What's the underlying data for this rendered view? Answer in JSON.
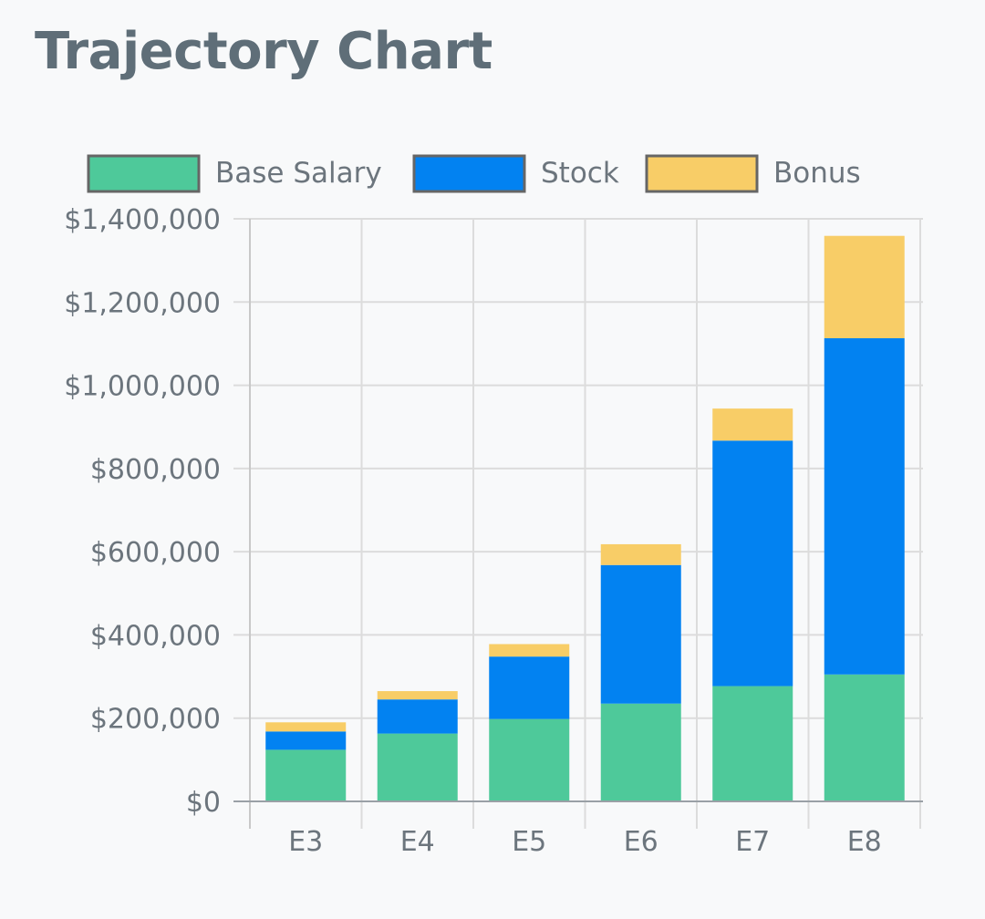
{
  "title": "Trajectory Chart",
  "chart_data": {
    "type": "bar",
    "stacked": true,
    "categories": [
      "E3",
      "E4",
      "E5",
      "E6",
      "E7",
      "E8"
    ],
    "series": [
      {
        "name": "Base Salary",
        "color": "#4ec99a",
        "values": [
          124000,
          163000,
          198000,
          235000,
          277000,
          305000
        ]
      },
      {
        "name": "Stock",
        "color": "#0282f1",
        "values": [
          44000,
          82000,
          150000,
          333000,
          590000,
          808000
        ]
      },
      {
        "name": "Bonus",
        "color": "#f8cd67",
        "values": [
          22000,
          20000,
          30000,
          50000,
          77000,
          246000
        ]
      }
    ],
    "yTicks": [
      0,
      200000,
      400000,
      600000,
      800000,
      1000000,
      1200000,
      1400000
    ],
    "yTickLabels": [
      "$0",
      "$200,000",
      "$400,000",
      "$600,000",
      "$800,000",
      "$1,000,000",
      "$1,200,000",
      "$1,400,000"
    ],
    "ylim": [
      0,
      1400000
    ],
    "grid": true,
    "legend": "top"
  }
}
